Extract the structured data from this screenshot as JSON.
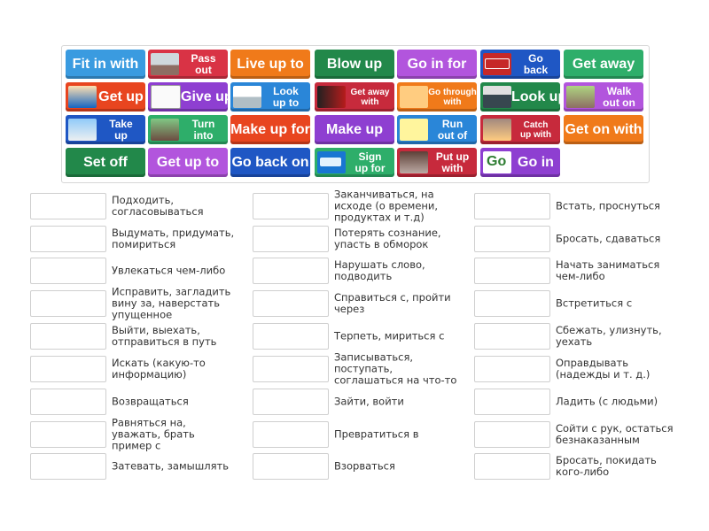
{
  "tiles": [
    {
      "label": "Fit in with",
      "color": "#3a9be0"
    },
    {
      "label": "Pass\nout",
      "color": "#d93345",
      "icon": "skater-photo-icon"
    },
    {
      "label": "Live up to",
      "color": "#f07a1a"
    },
    {
      "label": "Blow up",
      "color": "#22884a"
    },
    {
      "label": "Go in for",
      "color": "#b255dd"
    },
    {
      "label": "Go\nback",
      "color": "#1f57c4",
      "icon": "go-back-sign-icon"
    },
    {
      "label": "Get away",
      "color": "#2eae6a"
    },
    {
      "label": "Get up",
      "color": "#e8451f",
      "icon": "man-waking-icon"
    },
    {
      "label": "Give up",
      "color": "#8e3fd1",
      "icon": "give-up-sketch-icon"
    },
    {
      "label": "Look\nup to",
      "color": "#2a86d8",
      "icon": "look-up-cartoon-icon"
    },
    {
      "label": "Get away\nwith",
      "color": "#c72a3c",
      "icon": "movie-poster-icon"
    },
    {
      "label": "Go through\nwith",
      "color": "#f07a1a",
      "icon": "mouse-cartoon-icon"
    },
    {
      "label": "Look up",
      "color": "#22884a",
      "icon": "businessman-photo-icon"
    },
    {
      "label": "Walk\nout on",
      "color": "#b255dd",
      "icon": "man-walking-icon"
    },
    {
      "label": "Take\nup",
      "color": "#1f57c4",
      "icon": "plane-photo-icon"
    },
    {
      "label": "Turn\ninto",
      "color": "#2eae6a",
      "icon": "road-photo-icon"
    },
    {
      "label": "Make up for",
      "color": "#e8451f"
    },
    {
      "label": "Make up",
      "color": "#8e3fd1"
    },
    {
      "label": "Run\nout of",
      "color": "#2a86d8",
      "icon": "running-cartoon-icon"
    },
    {
      "label": "Catch\nup with",
      "color": "#c72a3c",
      "icon": "classroom-photo-icon"
    },
    {
      "label": "Get on with",
      "color": "#f07a1a"
    },
    {
      "label": "Set off",
      "color": "#22884a"
    },
    {
      "label": "Get up to",
      "color": "#b255dd"
    },
    {
      "label": "Go back on",
      "color": "#1f57c4"
    },
    {
      "label": "Sign\nup for",
      "color": "#2eae6a",
      "icon": "sign-up-button-icon"
    },
    {
      "label": "Put up\nwith",
      "color": "#c72a3c",
      "icon": "door-photo-icon"
    },
    {
      "label": "Go in",
      "color": "#8e3fd1",
      "icon": "go-logo-icon"
    }
  ],
  "definitions": {
    "col1": [
      "Подходить, согласовываться",
      "Выдумать, придумать, помириться",
      "Увлекаться чем-либо",
      "Исправить, загладить вину за, наверстать упущенное",
      "Выйти, выехать, отправиться в путь",
      "Искать (какую-то информацию)",
      "Возвращаться",
      "Равняться на, уважать, брать пример с",
      "Затевать, замышлять"
    ],
    "col2": [
      "Заканчиваться, на исходе (о времени, продуктах и т.д)",
      "Потерять сознание, упасть в обморок",
      "Нарушать слово, подводить",
      "Справиться с, пройти через",
      "Терпеть, мириться с",
      "Записываться, поступать, соглашаться на что-то",
      "Зайти, войти",
      "Превратиться в",
      "Взорваться"
    ],
    "col3": [
      "Встать, проснуться",
      "Бросать, сдаваться",
      "Начать заниматься чем-либо",
      "Встретиться с",
      "Сбежать, улизнуть, уехать",
      "Оправдывать (надежды и т. д.)",
      "Ладить (с людьми)",
      "Сойти с рук, остаться безнаказанным",
      "Бросать, покидать кого-либо"
    ]
  }
}
